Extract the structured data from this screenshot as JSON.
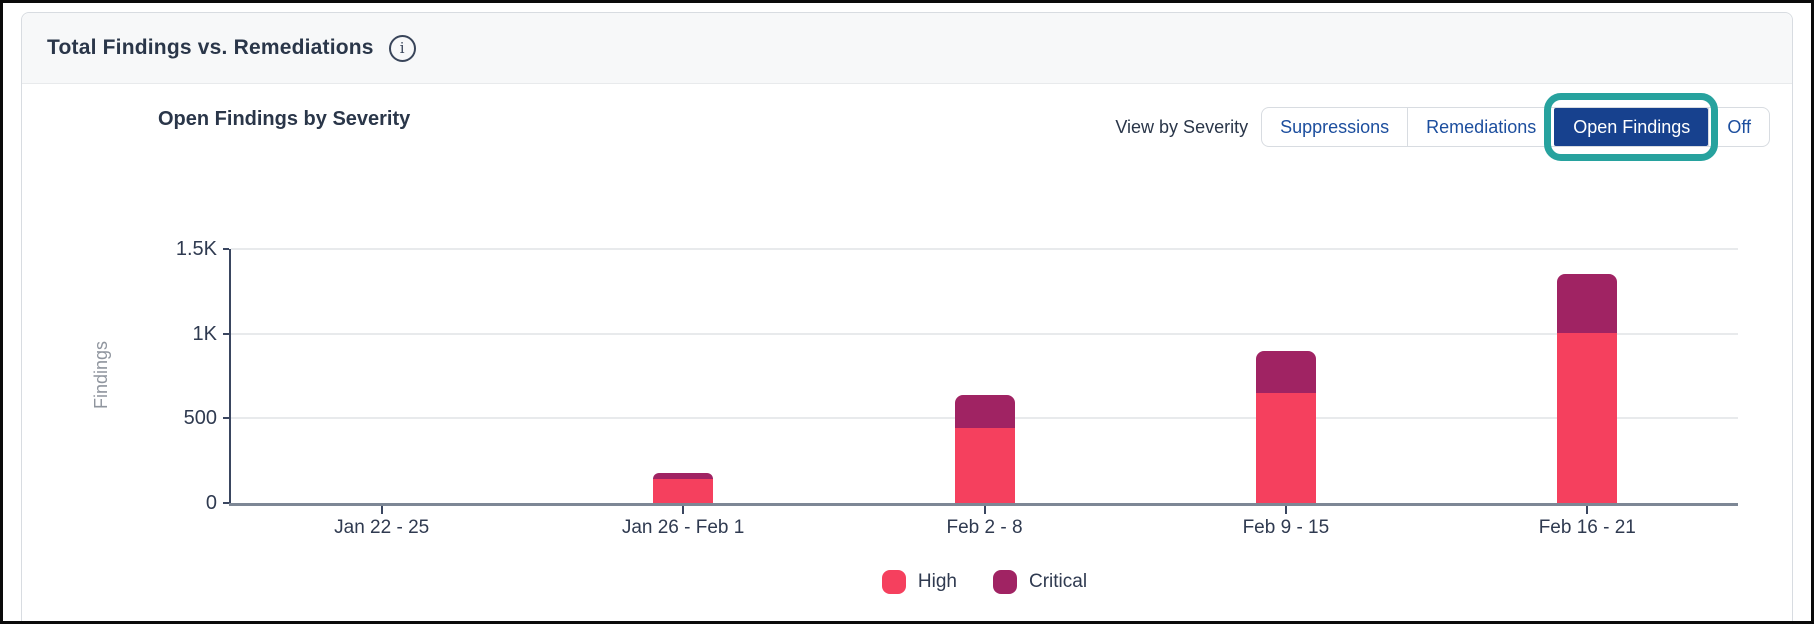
{
  "panel": {
    "title": "Total Findings vs. Remediations",
    "info_icon": "info-icon",
    "info_glyph": "i"
  },
  "chart_header": {
    "title": "Open Findings by Severity",
    "view_by_label": "View by Severity",
    "buttons": [
      {
        "label": "Suppressions",
        "selected": false
      },
      {
        "label": "Remediations",
        "selected": false
      },
      {
        "label": "Open Findings",
        "selected": true
      },
      {
        "label": "Off",
        "selected": false
      }
    ],
    "annotation": {
      "type": "highlight-ring",
      "target": "Open Findings",
      "color": "#27a29e"
    }
  },
  "chart_data": {
    "type": "bar",
    "stacked": true,
    "title": "Open Findings by Severity",
    "xlabel": "",
    "ylabel": "Findings",
    "ylim": [
      0,
      1500
    ],
    "grid": true,
    "legend_position": "bottom",
    "yticks": [
      {
        "value": 0,
        "label": "0"
      },
      {
        "value": 500,
        "label": "500"
      },
      {
        "value": 1000,
        "label": "1K"
      },
      {
        "value": 1500,
        "label": "1.5K"
      }
    ],
    "categories": [
      "Jan 22 - 25",
      "Jan 26 - Feb 1",
      "Feb 2 - 8",
      "Feb 9 - 15",
      "Feb 16 - 21"
    ],
    "series": [
      {
        "name": "High",
        "color": "#f5405e",
        "values": [
          0,
          140,
          440,
          650,
          1005
        ]
      },
      {
        "name": "Critical",
        "color": "#a02363",
        "values": [
          0,
          40,
          195,
          250,
          345
        ]
      }
    ],
    "totals": [
      0,
      180,
      635,
      900,
      1350
    ]
  },
  "colors": {
    "selected_button_bg": "#17418e",
    "button_text": "#1c4e9e",
    "highlight_ring": "#27a29e",
    "header_bg": "#f7f8f9",
    "card_border": "#d8dce1",
    "title_text": "#2a3649",
    "axis_text": "#2f3a50",
    "muted_text": "#8f959e",
    "gridline": "#e8eaec",
    "x_axis_line": "#7d8795",
    "dark_axis": "#3a4660"
  }
}
